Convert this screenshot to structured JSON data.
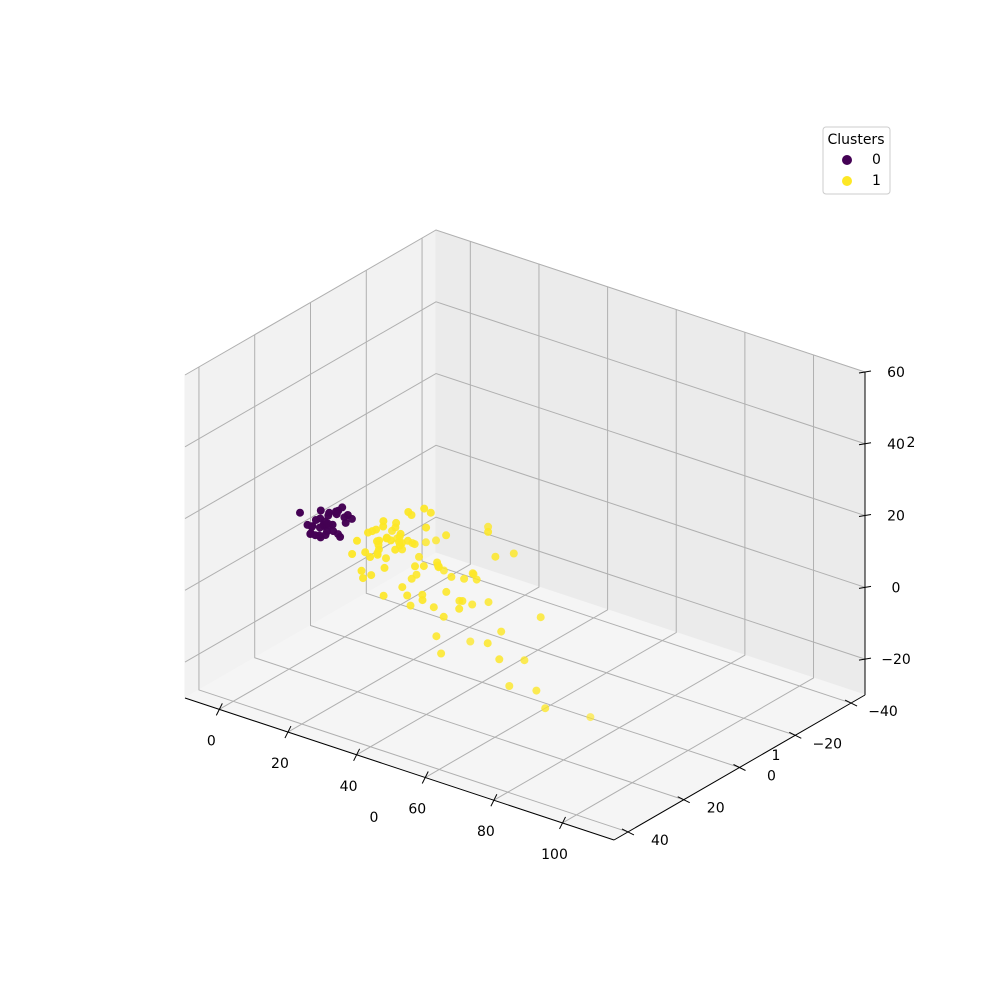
{
  "chart_data": {
    "type": "scatter",
    "projection": "3d",
    "title": "",
    "xlabel": "0",
    "ylabel": "1",
    "zlabel": "2",
    "x_ticks": [
      "0",
      "20",
      "40",
      "60",
      "80",
      "100"
    ],
    "y_ticks": [
      "−40",
      "−20",
      "0",
      "20",
      "40"
    ],
    "z_ticks": [
      "−20",
      "0",
      "20",
      "40",
      "60"
    ],
    "xlim": [
      -10,
      115
    ],
    "ylim": [
      -45,
      45
    ],
    "zlim": [
      -30,
      60
    ],
    "grid": true,
    "legend": {
      "title": "Clusters",
      "placement": "top-right",
      "entries": [
        {
          "label": "0",
          "color": "#440154"
        },
        {
          "label": "1",
          "color": "#fde725"
        }
      ]
    },
    "series": [
      {
        "name": "0",
        "color": "#440154",
        "points": [
          [
            -7,
            3,
            0
          ],
          [
            -6,
            -3,
            -2
          ],
          [
            -5,
            1,
            1
          ],
          [
            -6,
            5,
            -1
          ],
          [
            -4,
            -6,
            0
          ],
          [
            -7,
            0,
            3
          ],
          [
            -5,
            -2,
            -3
          ],
          [
            -3,
            4,
            2
          ],
          [
            -6,
            -5,
            1
          ],
          [
            -4,
            2,
            -2
          ],
          [
            -8,
            -1,
            0
          ],
          [
            -5,
            6,
            0
          ],
          [
            -3,
            -4,
            -1
          ],
          [
            -7,
            2,
            -3
          ],
          [
            -4,
            -2,
            2
          ],
          [
            -6,
            3,
            2
          ],
          [
            -2,
            0,
            -2
          ],
          [
            -5,
            -6,
            -1
          ],
          [
            -7,
            -3,
            1
          ],
          [
            -3,
            5,
            -1
          ],
          [
            -6,
            0,
            -1
          ],
          [
            -4,
            1,
            3
          ],
          [
            -5,
            -3,
            2
          ],
          [
            -8,
            2,
            -1
          ],
          [
            -2,
            -5,
            0
          ],
          [
            -3,
            2,
            1
          ],
          [
            -6,
            -1,
            -3
          ],
          [
            -4,
            4,
            1
          ],
          [
            -5,
            3,
            -2
          ],
          [
            -7,
            -6,
            0
          ],
          [
            -9,
            5,
            4
          ],
          [
            -3,
            -2,
            -4
          ],
          [
            -6,
            6,
            2
          ],
          [
            -5,
            0,
            0
          ],
          [
            -4,
            -4,
            3
          ]
        ]
      },
      {
        "name": "1",
        "color": "#fde725",
        "points": [
          [
            10,
            0,
            0
          ],
          [
            12,
            3,
            -2
          ],
          [
            8,
            -4,
            3
          ],
          [
            14,
            5,
            1
          ],
          [
            9,
            2,
            -4
          ],
          [
            11,
            -3,
            -1
          ],
          [
            13,
            1,
            2
          ],
          [
            7,
            6,
            -2
          ],
          [
            15,
            -2,
            0
          ],
          [
            10,
            4,
            4
          ],
          [
            12,
            -5,
            -3
          ],
          [
            8,
            0,
            2
          ],
          [
            14,
            3,
            -5
          ],
          [
            11,
            2,
            1
          ],
          [
            9,
            -1,
            -2
          ],
          [
            16,
            0,
            3
          ],
          [
            6,
            3,
            0
          ],
          [
            13,
            -4,
            1
          ],
          [
            10,
            5,
            -1
          ],
          [
            12,
            1,
            5
          ],
          [
            18,
            -3,
            -6
          ],
          [
            20,
            4,
            -8
          ],
          [
            17,
            7,
            -10
          ],
          [
            22,
            -6,
            -5
          ],
          [
            19,
            1,
            -12
          ],
          [
            25,
            3,
            -9
          ],
          [
            21,
            -2,
            -14
          ],
          [
            24,
            6,
            -11
          ],
          [
            16,
            8,
            2
          ],
          [
            18,
            -7,
            3
          ],
          [
            23,
            0,
            -3
          ],
          [
            15,
            9,
            -4
          ],
          [
            27,
            -5,
            -7
          ],
          [
            20,
            2,
            4
          ],
          [
            26,
            8,
            -2
          ],
          [
            30,
            5,
            -10
          ],
          [
            28,
            -1,
            -16
          ],
          [
            32,
            3,
            -6
          ],
          [
            29,
            10,
            1
          ],
          [
            31,
            -4,
            -12
          ],
          [
            35,
            2,
            -8
          ],
          [
            33,
            7,
            3
          ],
          [
            36,
            -3,
            -4
          ],
          [
            34,
            9,
            -15
          ],
          [
            38,
            4,
            0
          ],
          [
            40,
            -2,
            -20
          ],
          [
            42,
            6,
            -5
          ],
          [
            37,
            11,
            -18
          ],
          [
            45,
            0,
            -22
          ],
          [
            39,
            -6,
            2
          ],
          [
            44,
            8,
            5
          ],
          [
            48,
            3,
            -12
          ],
          [
            46,
            -4,
            6
          ],
          [
            50,
            10,
            0
          ],
          [
            52,
            5,
            -25
          ],
          [
            55,
            -1,
            -28
          ],
          [
            58,
            7,
            -15
          ],
          [
            47,
            12,
            8
          ],
          [
            60,
            2,
            -30
          ],
          [
            53,
            -5,
            -10
          ],
          [
            15,
            -10,
            6
          ],
          [
            22,
            12,
            10
          ],
          [
            28,
            15,
            12
          ],
          [
            35,
            18,
            15
          ],
          [
            30,
            20,
            18
          ],
          [
            40,
            25,
            20
          ],
          [
            45,
            22,
            14
          ],
          [
            33,
            14,
            9
          ],
          [
            25,
            16,
            7
          ],
          [
            38,
            28,
            22
          ],
          [
            48,
            30,
            25
          ],
          [
            55,
            35,
            30
          ],
          [
            42,
            18,
            11
          ],
          [
            50,
            26,
            16
          ],
          [
            12,
            -8,
            5
          ],
          [
            65,
            35,
            5
          ],
          [
            100,
            35,
            -5
          ],
          [
            58,
            20,
            28
          ],
          [
            26,
            -9,
            -18
          ],
          [
            32,
            -12,
            4
          ],
          [
            18,
            4,
            8
          ],
          [
            21,
            -5,
            9
          ],
          [
            24,
            9,
            6
          ],
          [
            14,
            6,
            7
          ],
          [
            9,
            -7,
            -6
          ],
          [
            11,
            7,
            -7
          ],
          [
            17,
            -3,
            8
          ],
          [
            13,
            10,
            -3
          ],
          [
            19,
            5,
            10
          ],
          [
            23,
            -8,
            2
          ]
        ]
      }
    ]
  }
}
